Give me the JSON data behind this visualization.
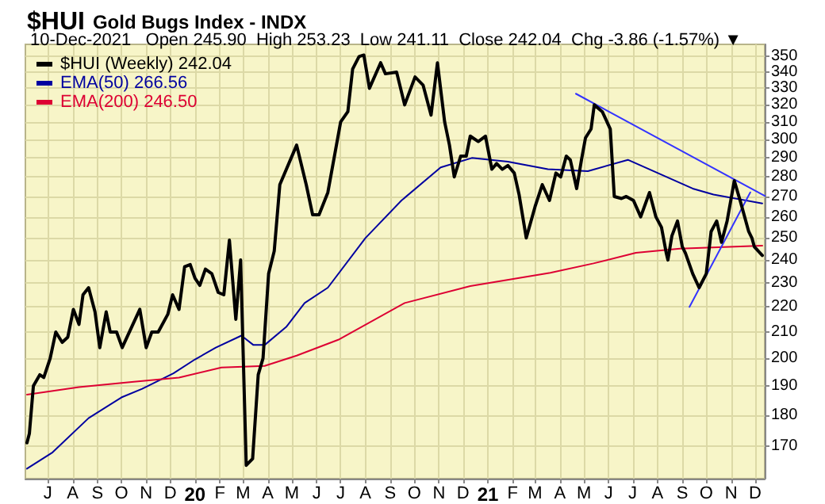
{
  "chart_data": {
    "type": "line",
    "title": "$HUI Gold Bugs Index - INDX",
    "subtitle": "10-Dec-2021   Open 245.90  High 253.23  Low 241.11  Close 242.04  Chg -3.86 (-1.57%) ▼",
    "log": "y",
    "grid": true,
    "legend": "top left",
    "marker": "none",
    "line_style": "solid",
    "xlim": [
      "2019-06-03",
      "2021-12-13"
    ],
    "ylim": [
      160,
      358
    ],
    "yticks": [
      170,
      180,
      190,
      200,
      210,
      220,
      230,
      240,
      250,
      260,
      270,
      280,
      290,
      300,
      310,
      320,
      330,
      340,
      350
    ],
    "xticks": [
      {
        "value": "2019-07",
        "label": "J"
      },
      {
        "value": "2019-08",
        "label": "A"
      },
      {
        "value": "2019-09",
        "label": "S"
      },
      {
        "value": "2019-10",
        "label": "O"
      },
      {
        "value": "2019-11",
        "label": "N"
      },
      {
        "value": "2019-12",
        "label": "D"
      },
      {
        "value": "2020-01",
        "label": "20"
      },
      {
        "value": "2020-02",
        "label": "F"
      },
      {
        "value": "2020-03",
        "label": "M"
      },
      {
        "value": "2020-04",
        "label": "A"
      },
      {
        "value": "2020-05",
        "label": "M"
      },
      {
        "value": "2020-06",
        "label": "J"
      },
      {
        "value": "2020-07",
        "label": "J"
      },
      {
        "value": "2020-08",
        "label": "A"
      },
      {
        "value": "2020-09",
        "label": "S"
      },
      {
        "value": "2020-10",
        "label": "O"
      },
      {
        "value": "2020-11",
        "label": "N"
      },
      {
        "value": "2020-12",
        "label": "D"
      },
      {
        "value": "2021-01",
        "label": "21"
      },
      {
        "value": "2021-02",
        "label": "F"
      },
      {
        "value": "2021-03",
        "label": "M"
      },
      {
        "value": "2021-04",
        "label": "A"
      },
      {
        "value": "2021-05",
        "label": "M"
      },
      {
        "value": "2021-06",
        "label": "J"
      },
      {
        "value": "2021-07",
        "label": "J"
      },
      {
        "value": "2021-08",
        "label": "A"
      },
      {
        "value": "2021-09",
        "label": "S"
      },
      {
        "value": "2021-10",
        "label": "O"
      },
      {
        "value": "2021-11",
        "label": "N"
      },
      {
        "value": "2021-12",
        "label": "D"
      }
    ],
    "series": [
      {
        "name": "$HUI (Weekly) 242.04",
        "color": "#000000",
        "x": [
          "2019-06-05",
          "2019-06-08",
          "2019-06-13",
          "2019-06-21",
          "2019-06-26",
          "2019-07-04",
          "2019-07-11",
          "2019-07-19",
          "2019-07-26",
          "2019-08-02",
          "2019-08-09",
          "2019-08-14",
          "2019-08-21",
          "2019-08-29",
          "2019-09-04",
          "2019-09-12",
          "2019-09-17",
          "2019-09-25",
          "2019-10-02",
          "2019-10-24",
          "2019-11-01",
          "2019-11-08",
          "2019-11-16",
          "2019-11-28",
          "2019-12-04",
          "2019-12-12",
          "2019-12-19",
          "2019-12-26",
          "2020-01-01",
          "2020-01-07",
          "2020-01-14",
          "2020-01-22",
          "2020-01-30",
          "2020-02-06",
          "2020-02-13",
          "2020-02-21",
          "2020-02-27",
          "2020-03-05",
          "2020-03-13",
          "2020-03-20",
          "2020-03-26",
          "2020-04-02",
          "2020-04-09",
          "2020-04-16",
          "2020-05-07",
          "2020-05-19",
          "2020-05-27",
          "2020-06-04",
          "2020-06-15",
          "2020-07-01",
          "2020-07-10",
          "2020-07-16",
          "2020-07-24",
          "2020-07-30",
          "2020-08-06",
          "2020-08-20",
          "2020-08-26",
          "2020-09-09",
          "2020-09-19",
          "2020-10-02",
          "2020-10-12",
          "2020-10-22",
          "2020-10-30",
          "2020-11-08",
          "2020-11-14",
          "2020-11-20",
          "2020-11-28",
          "2020-12-05",
          "2020-12-10",
          "2020-12-20",
          "2020-12-29",
          "2021-01-06",
          "2021-01-12",
          "2021-01-19",
          "2021-01-26",
          "2021-02-03",
          "2021-02-09",
          "2021-02-18",
          "2021-03-01",
          "2021-03-10",
          "2021-03-19",
          "2021-03-27",
          "2021-04-02",
          "2021-04-09",
          "2021-04-14",
          "2021-04-22",
          "2021-04-28",
          "2021-05-03",
          "2021-05-10",
          "2021-05-14",
          "2021-05-24",
          "2021-06-03",
          "2021-06-08",
          "2021-06-17",
          "2021-06-23",
          "2021-07-02",
          "2021-07-11",
          "2021-07-22",
          "2021-07-30",
          "2021-08-06",
          "2021-08-12",
          "2021-08-14",
          "2021-08-19",
          "2021-08-26",
          "2021-09-01",
          "2021-09-05",
          "2021-09-14",
          "2021-09-22",
          "2021-10-01",
          "2021-10-07",
          "2021-10-14",
          "2021-10-20",
          "2021-10-27",
          "2021-11-05",
          "2021-11-13",
          "2021-11-23",
          "2021-11-27",
          "2021-11-30",
          "2021-12-10"
        ],
        "values": [
          171,
          174,
          190,
          194,
          193,
          200,
          210,
          206,
          208,
          219,
          213,
          225,
          228,
          218,
          204,
          218,
          210,
          210,
          204,
          219,
          204,
          210,
          210,
          217,
          225,
          219,
          237,
          238,
          232,
          229,
          236,
          234,
          226,
          225,
          249,
          215,
          240,
          164,
          166,
          194,
          200,
          234,
          244,
          276,
          297,
          276,
          261,
          261,
          272,
          310,
          316,
          342,
          350,
          351,
          330,
          346,
          339,
          340,
          320,
          337,
          332,
          314,
          346,
          310,
          297,
          280,
          291,
          291,
          302,
          299,
          302,
          284,
          287,
          284,
          286,
          282,
          271,
          250,
          265,
          276,
          268,
          282,
          280,
          291,
          289,
          274,
          289,
          301,
          306,
          320,
          316,
          306,
          270,
          269,
          270,
          268,
          260,
          272,
          260,
          255,
          243,
          240,
          251,
          258,
          246,
          243,
          234,
          228,
          234,
          253,
          258,
          248,
          258,
          278,
          267,
          253,
          250,
          246,
          242.04
        ]
      },
      {
        "name": "EMA(50) 266.56",
        "color": "#0000a0",
        "x": [
          "2019-06-05",
          "2019-07-07",
          "2019-08-21",
          "2019-10-01",
          "2019-10-27",
          "2019-12-05",
          "2020-01-01",
          "2020-01-27",
          "2020-02-28",
          "2020-03-14",
          "2020-03-28",
          "2020-04-24",
          "2020-05-17",
          "2020-06-15",
          "2020-08-01",
          "2020-09-15",
          "2020-11-03",
          "2020-12-12",
          "2021-01-26",
          "2021-03-17",
          "2021-05-06",
          "2021-06-25",
          "2021-09-14",
          "2021-10-10",
          "2021-12-10"
        ],
        "values": [
          163,
          168,
          179,
          186,
          189,
          194.5,
          199.6,
          204,
          208.6,
          205,
          205,
          212,
          221.6,
          228,
          250,
          268,
          285,
          290,
          288,
          284,
          283,
          289,
          274,
          271,
          266.56
        ]
      },
      {
        "name": "EMA(200) 246.50",
        "color": "#dd0033",
        "x": [
          "2019-06-05",
          "2019-08-09",
          "2019-10-14",
          "2019-12-12",
          "2020-02-03",
          "2020-03-28",
          "2020-05-07",
          "2020-06-28",
          "2020-09-19",
          "2020-12-10",
          "2021-03-20",
          "2021-05-13",
          "2021-07-05",
          "2021-08-29",
          "2021-12-10"
        ],
        "values": [
          187,
          189.6,
          191.4,
          193,
          196.6,
          197.2,
          201,
          207,
          221.6,
          228.7,
          234.4,
          238.5,
          243.2,
          245.1,
          246.5
        ]
      },
      {
        "color": "#3333ff",
        "x": [
          "2021-04-21",
          "2021-12-13"
        ],
        "values": [
          326.7,
          270.3
        ]
      },
      {
        "color": "#3333ff",
        "x": [
          "2021-09-10",
          "2021-11-25"
        ],
        "values": [
          220,
          272.1
        ]
      }
    ]
  }
}
